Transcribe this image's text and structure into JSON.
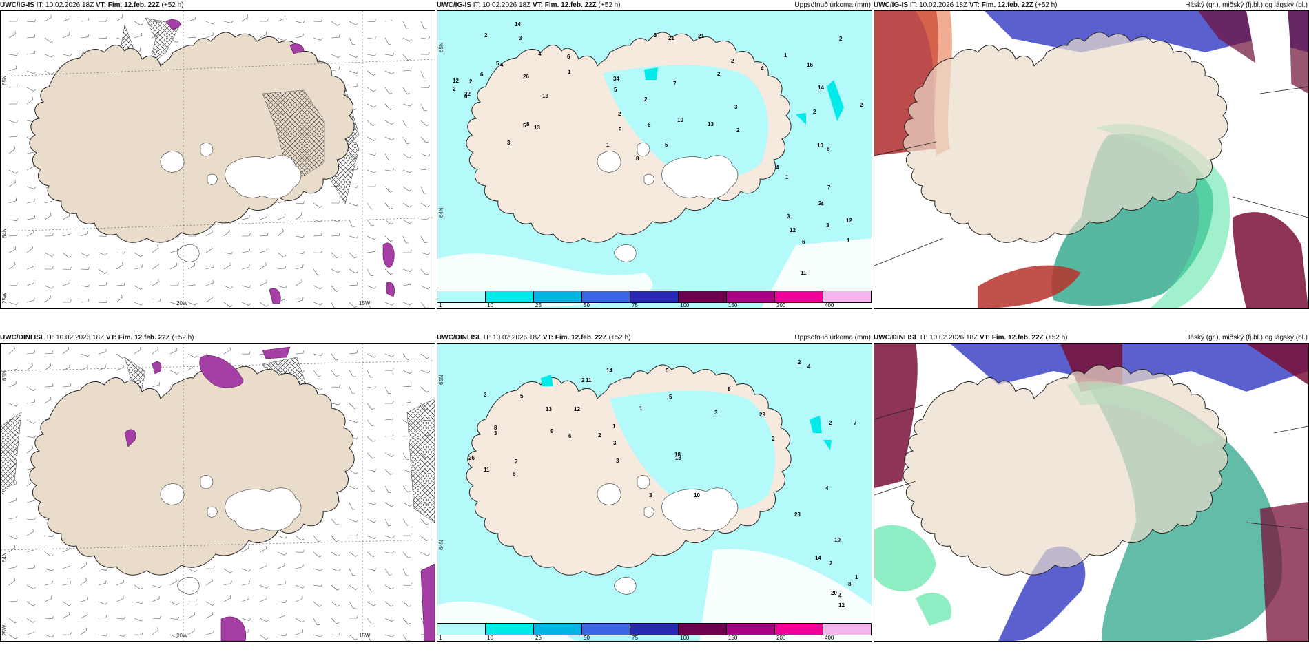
{
  "legend_colors": [
    "#b4fafa",
    "#00eaea",
    "#00b4e6",
    "#3c64e6",
    "#2828b4",
    "#6e0050",
    "#aa0082",
    "#f00096",
    "#f5b4f0"
  ],
  "legend_ticks": [
    "1",
    "10",
    "25",
    "50",
    "75",
    "100",
    "150",
    "200",
    "400"
  ],
  "land_color": "#e9dccb",
  "panels": [
    {
      "model": "UWC/IG-IS",
      "init": " IT: 10.02.2026 18Z ",
      "vt": "VT: Fim. 12.feb. 22Z",
      "lead": " (+52 h)",
      "title": "",
      "lat_labels": [
        "65N",
        "64N"
      ],
      "lon_labels": [
        "20W",
        "15W",
        "25W"
      ]
    },
    {
      "model": "UWC/IG-IS",
      "init": " IT: 10.02.2026 18Z ",
      "vt": "VT: Fim. 12.feb. 22Z",
      "lead": " (+52 h)",
      "title": "Uppsöfnuð úrkoma (mm)",
      "lat_labels": [
        "65N",
        "64N"
      ],
      "precip_numbers": [
        "1",
        "2",
        "2",
        "2",
        "2",
        "6",
        "2",
        "3",
        "6",
        "2",
        "4",
        "14",
        "13",
        "10",
        "3",
        "3",
        "1",
        "12",
        "9",
        "11",
        "13",
        "21",
        "16",
        "26",
        "7",
        "6",
        "22",
        "21",
        "14",
        "13",
        "34",
        "12",
        "8",
        "10",
        "12",
        "6",
        "4",
        "6",
        "4",
        "3",
        "2",
        "3",
        "5",
        "1",
        "2",
        "5",
        "7",
        "5",
        "6",
        "3",
        "4",
        "8",
        "2",
        "1",
        "2",
        "4",
        "5",
        "2",
        "1",
        "2"
      ]
    },
    {
      "model": "UWC/IG-IS",
      "init": " IT: 10.02.2026 18Z ",
      "vt": "VT: Fim. 12.feb. 22Z",
      "lead": " (+52 h)",
      "title": "Háský (gr.), miðský (fj.bl.) og lágský (bl.)"
    },
    {
      "model": "UWC/DINI ISL",
      "init": " IT: 10.02.2026 18Z ",
      "vt": "VT: Fim. 12.feb. 22Z",
      "lead": " (+52 h)",
      "title": "",
      "lat_labels": [
        "65N",
        "64N"
      ],
      "lon_labels": [
        "20W",
        "15W",
        "25W"
      ]
    },
    {
      "model": "UWC/DINI ISL",
      "init": " IT: 10.02.2026 18Z ",
      "vt": "VT: Fim. 12.feb. 22Z",
      "lead": " (+52 h)",
      "title": "Uppsöfnuð úrkoma (mm)",
      "lat_labels": [
        "65N",
        "64N"
      ],
      "precip_numbers": [
        "1",
        "2",
        "5",
        "8",
        "14",
        "11",
        "5",
        "7",
        "6",
        "10",
        "8",
        "11",
        "18",
        "20",
        "13",
        "13",
        "10",
        "26",
        "29",
        "23",
        "12",
        "14",
        "12",
        "8",
        "5",
        "4",
        "9",
        "3",
        "2",
        "7",
        "3",
        "4",
        "6",
        "1",
        "2",
        "3",
        "3",
        "1",
        "2",
        "3",
        "2",
        "3",
        "2",
        "4"
      ]
    },
    {
      "model": "UWC/DINI ISL",
      "init": " IT: 10.02.2026 18Z ",
      "vt": "VT: Fim. 12.feb. 22Z",
      "lead": " (+52 h)",
      "title": "Háský (gr.), miðský (fj.bl.) og lágský (bl.)"
    }
  ]
}
